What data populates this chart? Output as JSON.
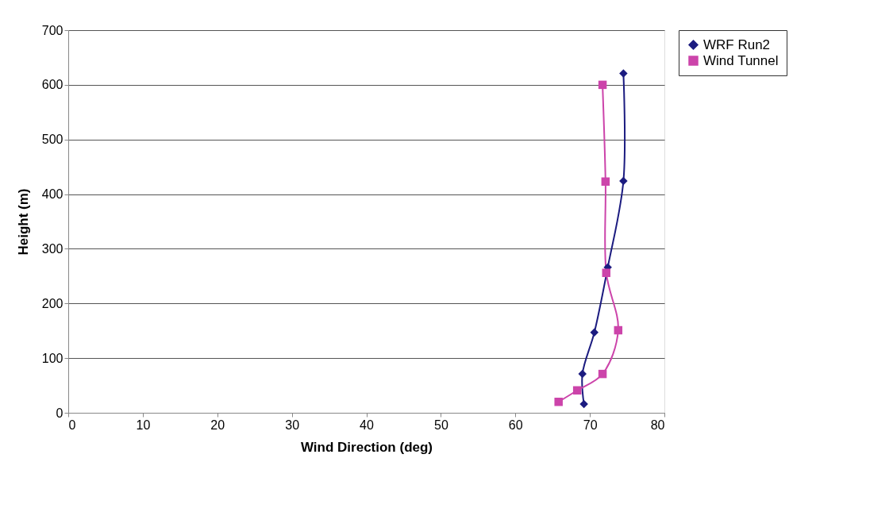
{
  "chart_data": {
    "type": "line",
    "xlabel": "Wind Direction (deg)",
    "ylabel": "Height (m)",
    "xlim": [
      0,
      80
    ],
    "xticks": [
      0,
      10,
      20,
      30,
      40,
      50,
      60,
      70,
      80
    ],
    "ylim": [
      0,
      700
    ],
    "yticks": [
      0,
      100,
      200,
      300,
      400,
      500,
      600,
      700
    ],
    "grid": "y",
    "legend": "right",
    "series": [
      {
        "name": "WRF Run2",
        "color": "#1c1c80",
        "marker": "diamond",
        "x": [
          69.2,
          69.0,
          70.6,
          72.4,
          74.5,
          74.5
        ],
        "values": [
          16,
          71,
          147,
          266,
          424,
          621
        ]
      },
      {
        "name": "Wind Tunnel",
        "color": "#cc44aa",
        "marker": "square",
        "x": [
          65.8,
          68.3,
          71.7,
          73.8,
          72.2,
          72.1,
          71.7
        ],
        "values": [
          20,
          41,
          71,
          151,
          256,
          423,
          600
        ]
      }
    ]
  }
}
